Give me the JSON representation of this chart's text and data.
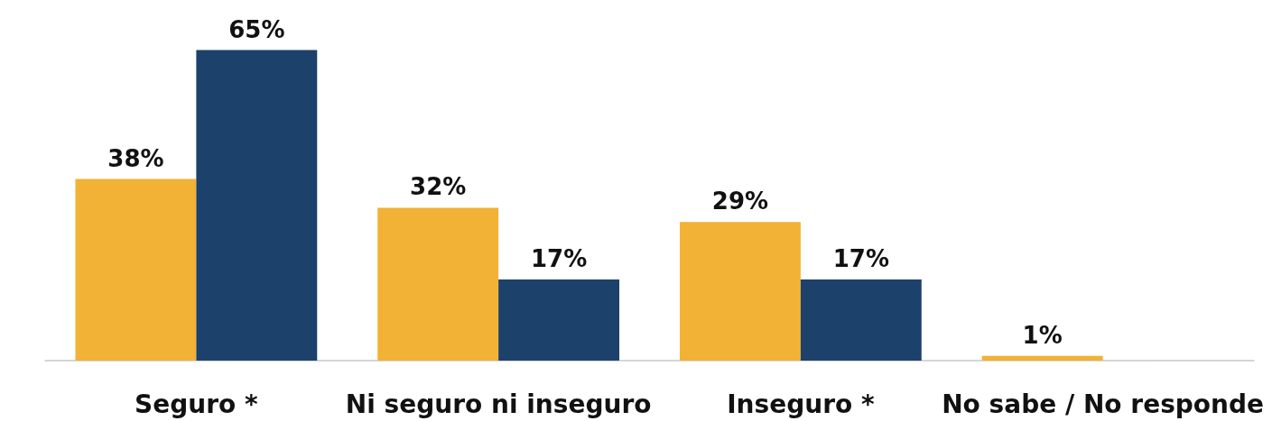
{
  "chart_data": {
    "type": "bar",
    "categories": [
      "Seguro *",
      "Ni seguro ni inseguro",
      "Inseguro *",
      "No sabe / No responde"
    ],
    "series": [
      {
        "color": "#f2b236",
        "values": [
          38,
          32,
          29,
          1
        ],
        "value_labels": [
          "38%",
          "32%",
          "29%",
          "1%"
        ]
      },
      {
        "color": "#1c416b",
        "values": [
          65,
          17,
          17,
          null
        ],
        "value_labels": [
          "65%",
          "17%",
          "17%",
          null
        ]
      }
    ]
  }
}
